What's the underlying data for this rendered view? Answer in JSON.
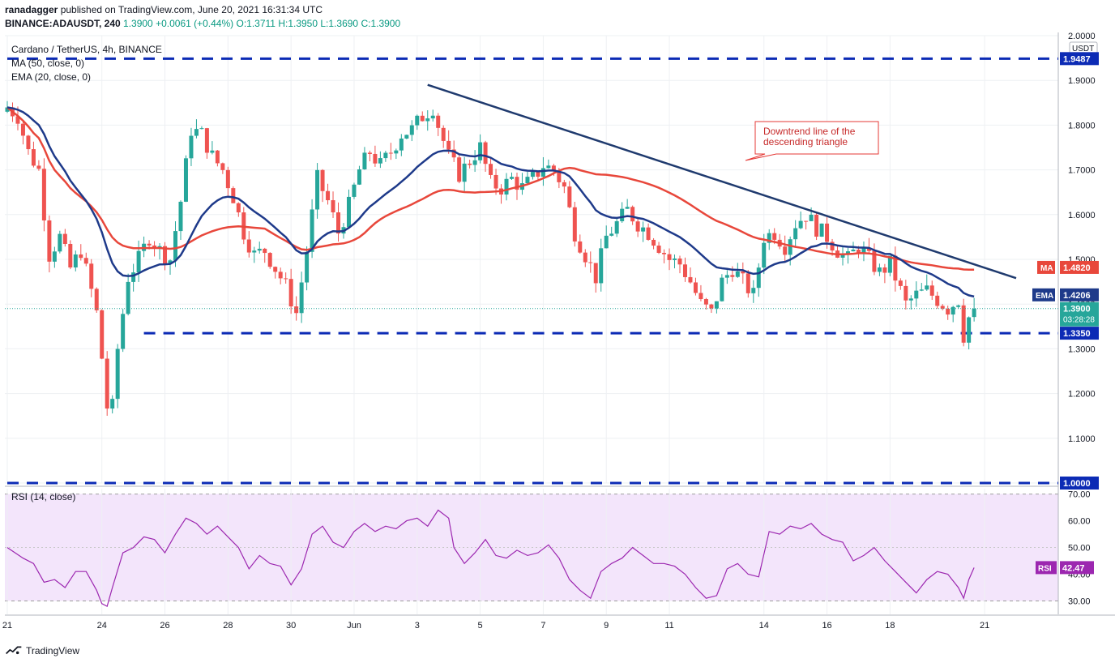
{
  "header": {
    "author": "ranadagger",
    "published": "published on TradingView.com, June 20, 2021 16:31:34 UTC",
    "symbol": "BINANCE:ADAUSDT, 240",
    "price": "1.3900",
    "change": "+0.0061 (+0.44%)",
    "open": "O:1.3711",
    "high": "H:1.3950",
    "low": "L:1.3690",
    "close": "C:1.3900"
  },
  "legend": {
    "title": "Cardano / TetherUS, 4h, BINANCE",
    "ma": "MA (50, close, 0)",
    "ema": "EMA (20, close, 0)"
  },
  "rsi_label": "RSI (14, close)",
  "footer": {
    "brand": "TradingView"
  },
  "annotation": "Downtrend line of the\ndescending triangle",
  "axis_labels": {
    "currency": "USDT",
    "ma_tag": "MA",
    "ema_tag": "EMA",
    "rsi_tag": "RSI",
    "countdown": "03:28:28"
  },
  "colors": {
    "up": "#26a69a",
    "down": "#ef5350",
    "ema": "#1e3a8a",
    "ma": "#e8473b",
    "trend": "#1f3a6e",
    "rsi": "#9c27b0",
    "rsi_band": "#f3e5fb",
    "level": "#0c2bb5"
  },
  "chart_data": {
    "type": "candlestick",
    "price_axis": {
      "ticks": [
        "2.0000",
        "1.9000",
        "1.8000",
        "1.7000",
        "1.6000",
        "1.5000",
        "1.4000",
        "1.3000",
        "1.2000",
        "1.1000",
        "1.0000"
      ],
      "ylim": [
        1.0,
        2.0
      ]
    },
    "x_ticks": [
      {
        "label": "21",
        "t": 0
      },
      {
        "label": "24",
        "t": 18
      },
      {
        "label": "26",
        "t": 30
      },
      {
        "label": "28",
        "t": 42
      },
      {
        "label": "30",
        "t": 54
      },
      {
        "label": "Jun",
        "t": 66
      },
      {
        "label": "3",
        "t": 78
      },
      {
        "label": "5",
        "t": 90
      },
      {
        "label": "7",
        "t": 102
      },
      {
        "label": "9",
        "t": 114
      },
      {
        "label": "11",
        "t": 126
      },
      {
        "label": "14",
        "t": 144
      },
      {
        "label": "16",
        "t": 156
      },
      {
        "label": "18",
        "t": 168
      },
      {
        "label": "21",
        "t": 186
      }
    ],
    "horizontal_levels": [
      {
        "value": 1.9487,
        "label": "1.9487",
        "from_t": 0
      },
      {
        "value": 1.335,
        "label": "1.3350",
        "from_t": 26
      },
      {
        "value": 1.0,
        "label": "1.0000",
        "from_t": 0
      }
    ],
    "trendline": {
      "from": {
        "t": 80,
        "v": 1.89
      },
      "to": {
        "t": 192,
        "v": 1.458
      }
    },
    "last": {
      "price": 1.39,
      "label": "1.3900",
      "ma": 1.482,
      "ma_label": "1.4820",
      "ema": 1.4206,
      "ema_label": "1.4206"
    },
    "ohlc_anchors": [
      [
        0,
        1.84
      ],
      [
        2,
        1.82
      ],
      [
        4,
        1.74
      ],
      [
        6,
        1.7
      ],
      [
        8,
        1.51
      ],
      [
        10,
        1.55
      ],
      [
        12,
        1.48
      ],
      [
        14,
        1.52
      ],
      [
        16,
        1.43
      ],
      [
        17,
        1.38
      ],
      [
        18,
        1.28
      ],
      [
        19,
        1.17
      ],
      [
        20,
        1.17
      ],
      [
        21,
        1.3
      ],
      [
        22,
        1.38
      ],
      [
        23,
        1.46
      ],
      [
        25,
        1.5
      ],
      [
        27,
        1.55
      ],
      [
        29,
        1.52
      ],
      [
        31,
        1.5
      ],
      [
        33,
        1.63
      ],
      [
        35,
        1.79
      ],
      [
        37,
        1.78
      ],
      [
        39,
        1.73
      ],
      [
        41,
        1.7
      ],
      [
        43,
        1.64
      ],
      [
        45,
        1.56
      ],
      [
        47,
        1.51
      ],
      [
        49,
        1.52
      ],
      [
        51,
        1.48
      ],
      [
        53,
        1.44
      ],
      [
        55,
        1.38
      ],
      [
        57,
        1.52
      ],
      [
        59,
        1.68
      ],
      [
        61,
        1.63
      ],
      [
        63,
        1.56
      ],
      [
        65,
        1.62
      ],
      [
        67,
        1.7
      ],
      [
        69,
        1.74
      ],
      [
        71,
        1.71
      ],
      [
        73,
        1.74
      ],
      [
        75,
        1.78
      ],
      [
        77,
        1.79
      ],
      [
        79,
        1.82
      ],
      [
        81,
        1.84
      ],
      [
        82,
        1.8
      ],
      [
        84,
        1.73
      ],
      [
        86,
        1.69
      ],
      [
        88,
        1.72
      ],
      [
        90,
        1.75
      ],
      [
        92,
        1.67
      ],
      [
        94,
        1.66
      ],
      [
        96,
        1.68
      ],
      [
        98,
        1.66
      ],
      [
        100,
        1.68
      ],
      [
        102,
        1.71
      ],
      [
        104,
        1.7
      ],
      [
        106,
        1.66
      ],
      [
        108,
        1.56
      ],
      [
        110,
        1.51
      ],
      [
        112,
        1.46
      ],
      [
        114,
        1.55
      ],
      [
        116,
        1.58
      ],
      [
        118,
        1.61
      ],
      [
        120,
        1.58
      ],
      [
        122,
        1.56
      ],
      [
        124,
        1.53
      ],
      [
        126,
        1.5
      ],
      [
        128,
        1.49
      ],
      [
        130,
        1.45
      ],
      [
        132,
        1.4
      ],
      [
        134,
        1.38
      ],
      [
        136,
        1.45
      ],
      [
        138,
        1.48
      ],
      [
        140,
        1.45
      ],
      [
        142,
        1.42
      ],
      [
        144,
        1.55
      ],
      [
        146,
        1.56
      ],
      [
        148,
        1.53
      ],
      [
        150,
        1.58
      ],
      [
        152,
        1.6
      ],
      [
        154,
        1.57
      ],
      [
        156,
        1.55
      ],
      [
        158,
        1.52
      ],
      [
        160,
        1.5
      ],
      [
        162,
        1.53
      ],
      [
        164,
        1.5
      ],
      [
        166,
        1.47
      ],
      [
        168,
        1.49
      ],
      [
        170,
        1.43
      ],
      [
        171,
        1.4
      ],
      [
        173,
        1.42
      ],
      [
        175,
        1.43
      ],
      [
        177,
        1.41
      ],
      [
        179,
        1.39
      ],
      [
        181,
        1.41
      ],
      [
        182,
        1.33
      ],
      [
        183,
        1.37
      ],
      [
        184,
        1.39
      ]
    ],
    "rsi": {
      "axis_ticks": [
        "70.00",
        "60.00",
        "50.00",
        "40.00",
        "30.00"
      ],
      "ylim": [
        25,
        72
      ],
      "band": [
        30,
        70
      ],
      "last": 42.47,
      "last_label": "42.47",
      "series": [
        [
          0,
          50
        ],
        [
          3,
          46
        ],
        [
          5,
          44
        ],
        [
          7,
          37
        ],
        [
          9,
          38
        ],
        [
          11,
          35
        ],
        [
          13,
          41
        ],
        [
          15,
          41
        ],
        [
          17,
          34
        ],
        [
          18,
          29
        ],
        [
          19,
          28
        ],
        [
          20,
          35
        ],
        [
          22,
          48
        ],
        [
          24,
          50
        ],
        [
          26,
          54
        ],
        [
          28,
          53
        ],
        [
          30,
          48
        ],
        [
          32,
          55
        ],
        [
          34,
          61
        ],
        [
          36,
          59
        ],
        [
          38,
          55
        ],
        [
          40,
          58
        ],
        [
          42,
          54
        ],
        [
          44,
          50
        ],
        [
          46,
          42
        ],
        [
          48,
          47
        ],
        [
          50,
          44
        ],
        [
          52,
          43
        ],
        [
          54,
          36
        ],
        [
          56,
          42
        ],
        [
          58,
          55
        ],
        [
          60,
          58
        ],
        [
          62,
          52
        ],
        [
          64,
          50
        ],
        [
          66,
          56
        ],
        [
          68,
          59
        ],
        [
          70,
          56
        ],
        [
          72,
          58
        ],
        [
          74,
          57
        ],
        [
          76,
          60
        ],
        [
          78,
          61
        ],
        [
          80,
          58
        ],
        [
          82,
          64
        ],
        [
          84,
          61
        ],
        [
          85,
          50
        ],
        [
          87,
          44
        ],
        [
          89,
          48
        ],
        [
          91,
          53
        ],
        [
          93,
          47
        ],
        [
          95,
          46
        ],
        [
          97,
          49
        ],
        [
          99,
          47
        ],
        [
          101,
          48
        ],
        [
          103,
          51
        ],
        [
          105,
          46
        ],
        [
          107,
          38
        ],
        [
          109,
          34
        ],
        [
          111,
          31
        ],
        [
          113,
          41
        ],
        [
          115,
          44
        ],
        [
          117,
          46
        ],
        [
          119,
          50
        ],
        [
          121,
          47
        ],
        [
          123,
          44
        ],
        [
          125,
          44
        ],
        [
          127,
          43
        ],
        [
          129,
          40
        ],
        [
          131,
          35
        ],
        [
          133,
          31
        ],
        [
          135,
          32
        ],
        [
          137,
          42
        ],
        [
          139,
          44
        ],
        [
          141,
          40
        ],
        [
          143,
          39
        ],
        [
          145,
          56
        ],
        [
          147,
          55
        ],
        [
          149,
          58
        ],
        [
          151,
          57
        ],
        [
          153,
          59
        ],
        [
          155,
          55
        ],
        [
          157,
          53
        ],
        [
          159,
          52
        ],
        [
          161,
          45
        ],
        [
          163,
          47
        ],
        [
          165,
          50
        ],
        [
          167,
          45
        ],
        [
          169,
          41
        ],
        [
          171,
          37
        ],
        [
          173,
          33
        ],
        [
          175,
          38
        ],
        [
          177,
          41
        ],
        [
          179,
          40
        ],
        [
          181,
          35
        ],
        [
          182,
          31
        ],
        [
          183,
          38
        ],
        [
          184,
          42.47
        ]
      ]
    }
  }
}
